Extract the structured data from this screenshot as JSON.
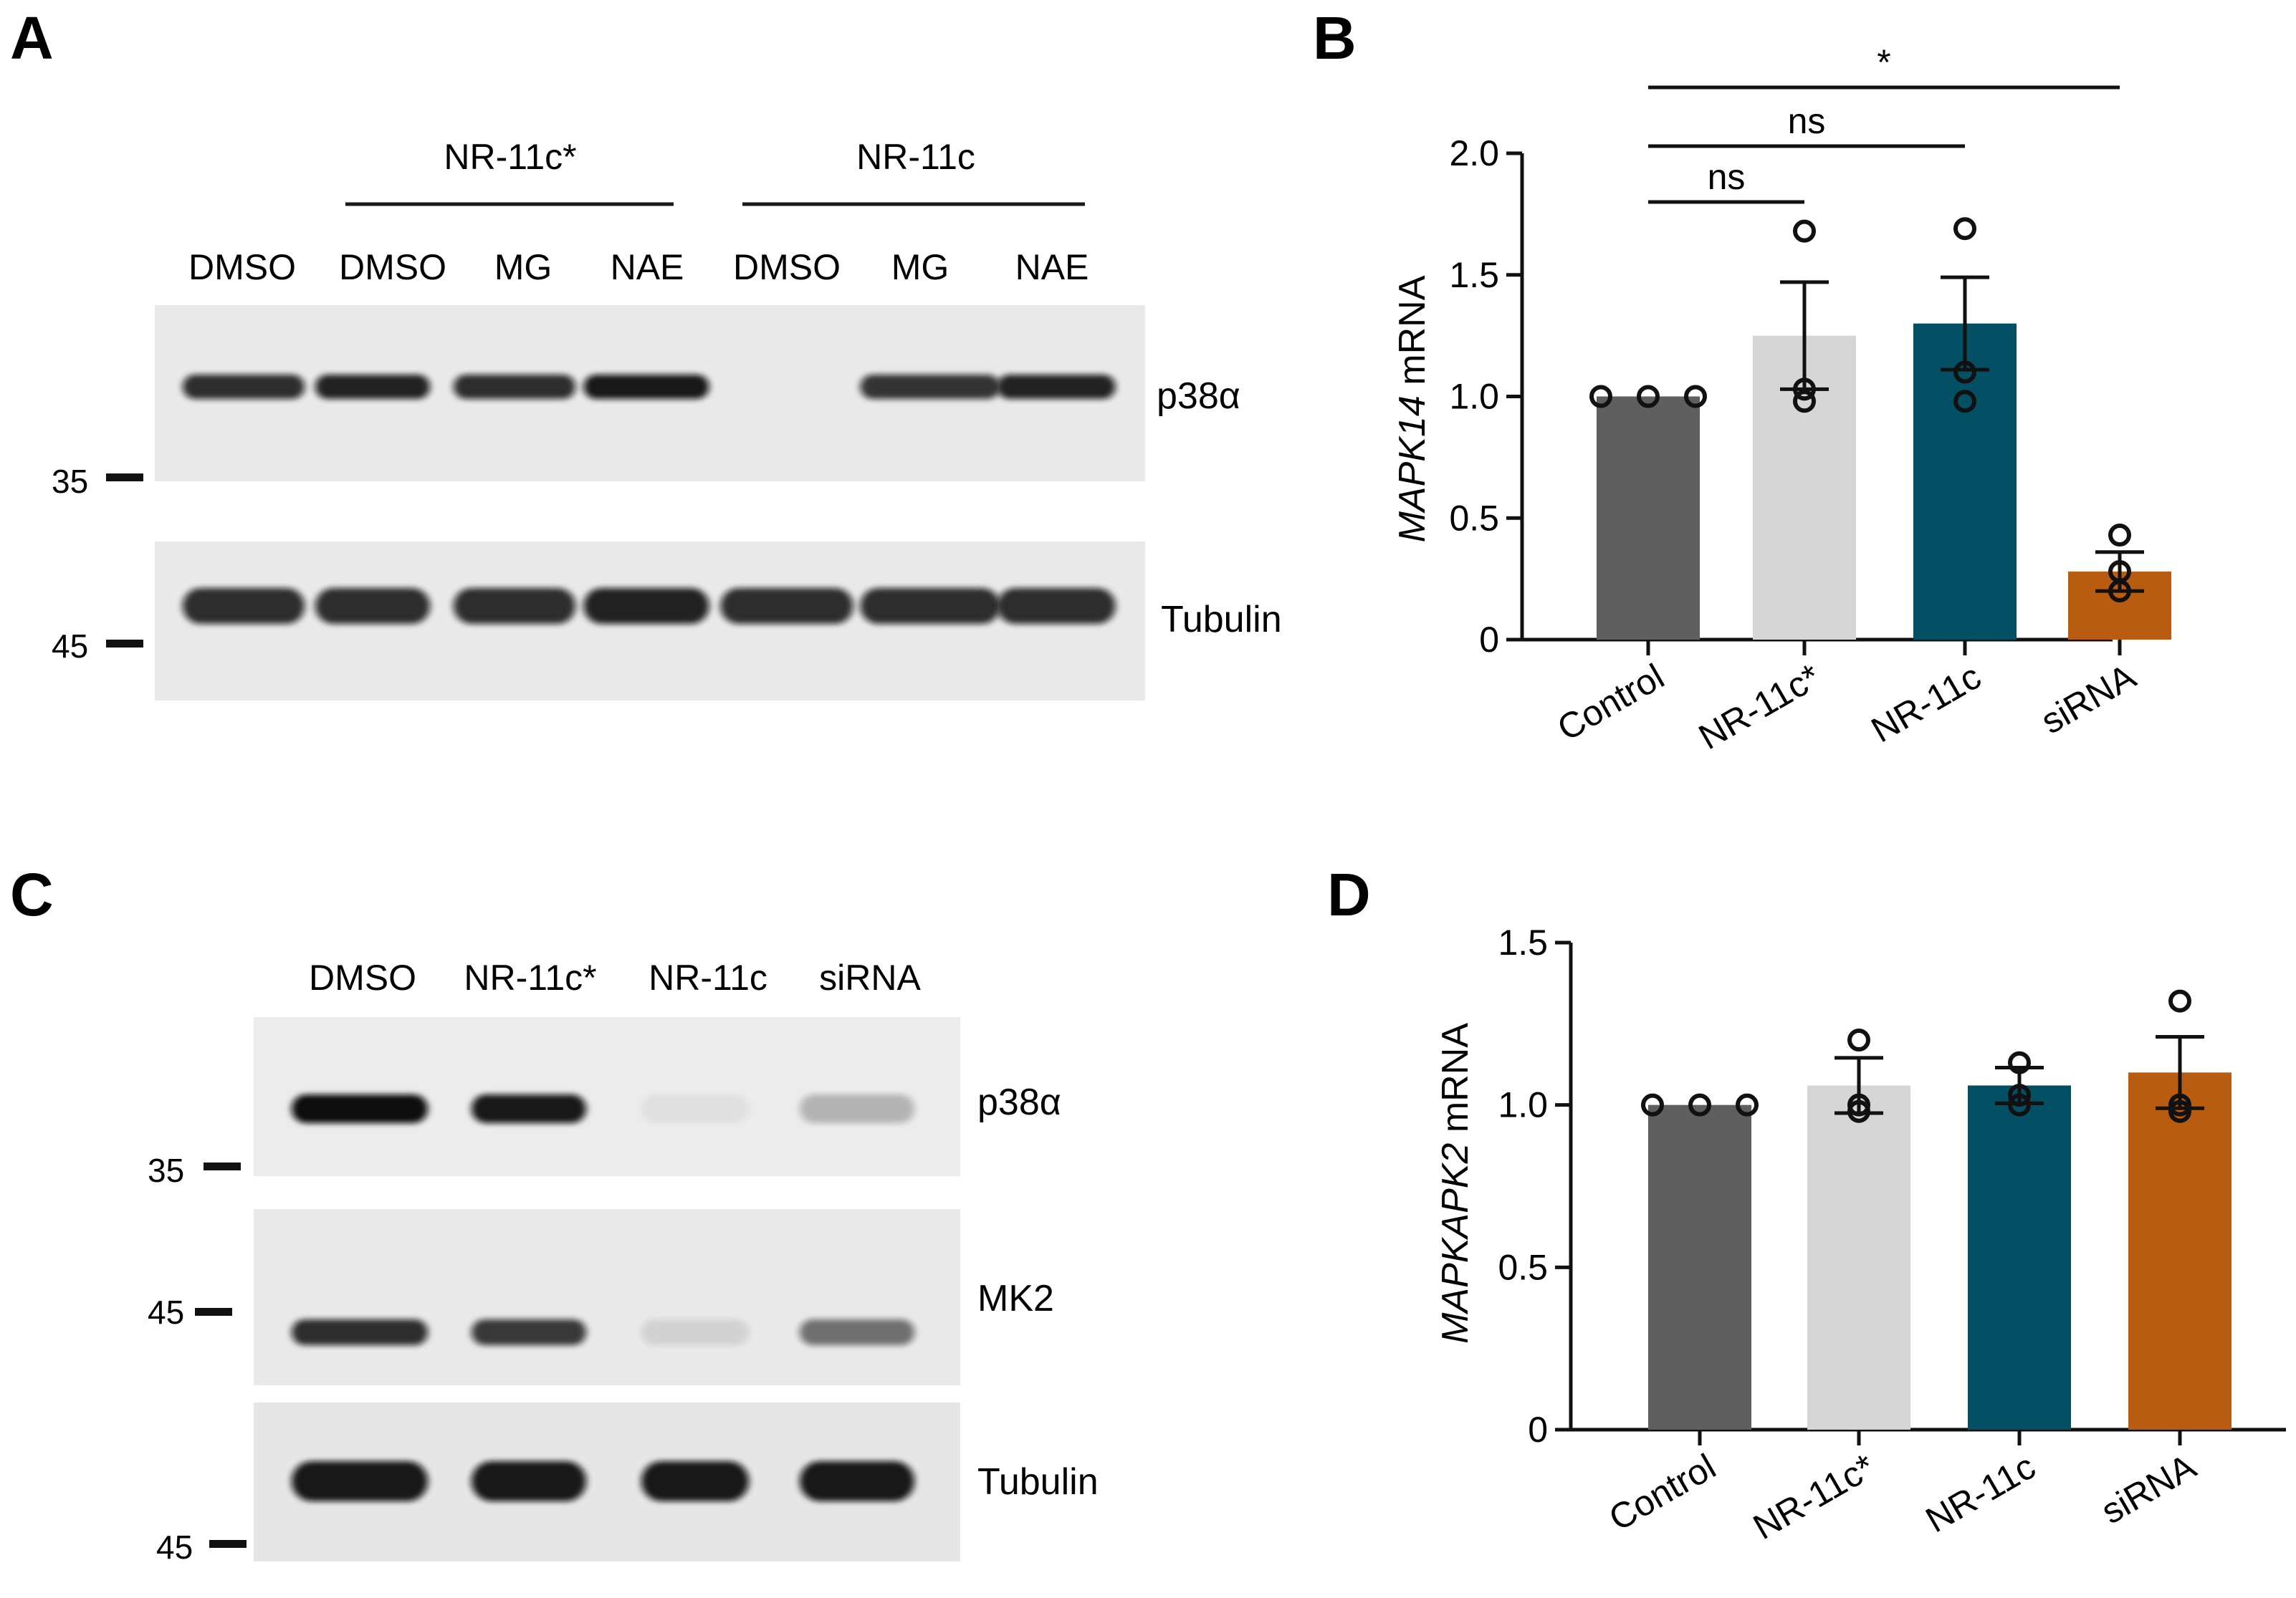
{
  "panels": {
    "A": {
      "letter": "A",
      "group_labels": [
        "NR-11c*",
        "NR-11c"
      ],
      "lane_labels": [
        "DMSO",
        "DMSO",
        "MG",
        "NAE",
        "DMSO",
        "MG",
        "NAE"
      ],
      "blot_labels": [
        "p38α",
        "Tubulin"
      ],
      "markers": [
        "35",
        "45"
      ],
      "band_intensity": {
        "p38α": [
          0.85,
          0.9,
          0.85,
          0.95,
          0.0,
          0.82,
          0.9
        ],
        "Tubulin": [
          0.85,
          0.85,
          0.85,
          0.9,
          0.85,
          0.85,
          0.85
        ]
      }
    },
    "B": {
      "letter": "B",
      "ylabel_italic": "MAPK14",
      "ylabel_plain": " mRNA",
      "significance": [
        "*",
        "ns",
        "ns"
      ]
    },
    "C": {
      "letter": "C",
      "lane_labels": [
        "DMSO",
        "NR-11c*",
        "NR-11c",
        "siRNA"
      ],
      "blot_labels": [
        "p38α",
        "MK2",
        "Tubulin"
      ],
      "markers": [
        "35",
        "45",
        "45"
      ],
      "band_intensity": {
        "p38α": [
          1.0,
          0.95,
          0.05,
          0.25
        ],
        "MK2": [
          0.85,
          0.8,
          0.1,
          0.55
        ],
        "Tubulin": [
          0.95,
          0.95,
          0.95,
          0.95
        ]
      }
    },
    "D": {
      "letter": "D",
      "ylabel_italic": "MAPKAPK2",
      "ylabel_plain": " mRNA"
    }
  },
  "chart_data": [
    {
      "panel": "B",
      "type": "bar",
      "categories": [
        "Control",
        "NR-11c*",
        "NR-11c",
        "siRNA"
      ],
      "values": [
        1.0,
        1.25,
        1.3,
        0.28
      ],
      "sem": [
        0.0,
        0.22,
        0.19,
        0.08
      ],
      "points": [
        [
          1.0,
          1.0,
          1.0
        ],
        [
          1.68,
          1.03,
          0.98
        ],
        [
          1.69,
          1.1,
          0.98
        ],
        [
          0.43,
          0.2,
          0.28
        ]
      ],
      "colors": [
        "#5f5f5f",
        "#d6d6d6",
        "#034f63",
        "#b85c12"
      ],
      "ylabel": "MAPK14 mRNA",
      "ylim": [
        0,
        2.0
      ],
      "yticks": [
        "0",
        "0.5",
        "1.0",
        "1.5",
        "2.0"
      ],
      "comparisons": [
        {
          "from": "Control",
          "to": "siRNA",
          "label": "*"
        },
        {
          "from": "Control",
          "to": "NR-11c",
          "label": "ns"
        },
        {
          "from": "Control",
          "to": "NR-11c*",
          "label": "ns"
        }
      ]
    },
    {
      "panel": "D",
      "type": "bar",
      "categories": [
        "Control",
        "NR-11c*",
        "NR-11c",
        "siRNA"
      ],
      "values": [
        1.0,
        1.06,
        1.06,
        1.1
      ],
      "sem": [
        0.0,
        0.085,
        0.055,
        0.11
      ],
      "points": [
        [
          1.0,
          1.0,
          1.0
        ],
        [
          1.2,
          1.0,
          0.98
        ],
        [
          1.13,
          1.03,
          1.0
        ],
        [
          1.32,
          1.0,
          0.98
        ]
      ],
      "colors": [
        "#5f5f5f",
        "#d6d6d6",
        "#034f63",
        "#b85c12"
      ],
      "ylabel": "MAPKAPK2 mRNA",
      "ylim": [
        0,
        1.5
      ],
      "yticks": [
        "0",
        "0.5",
        "1.0",
        "1.5"
      ]
    }
  ]
}
